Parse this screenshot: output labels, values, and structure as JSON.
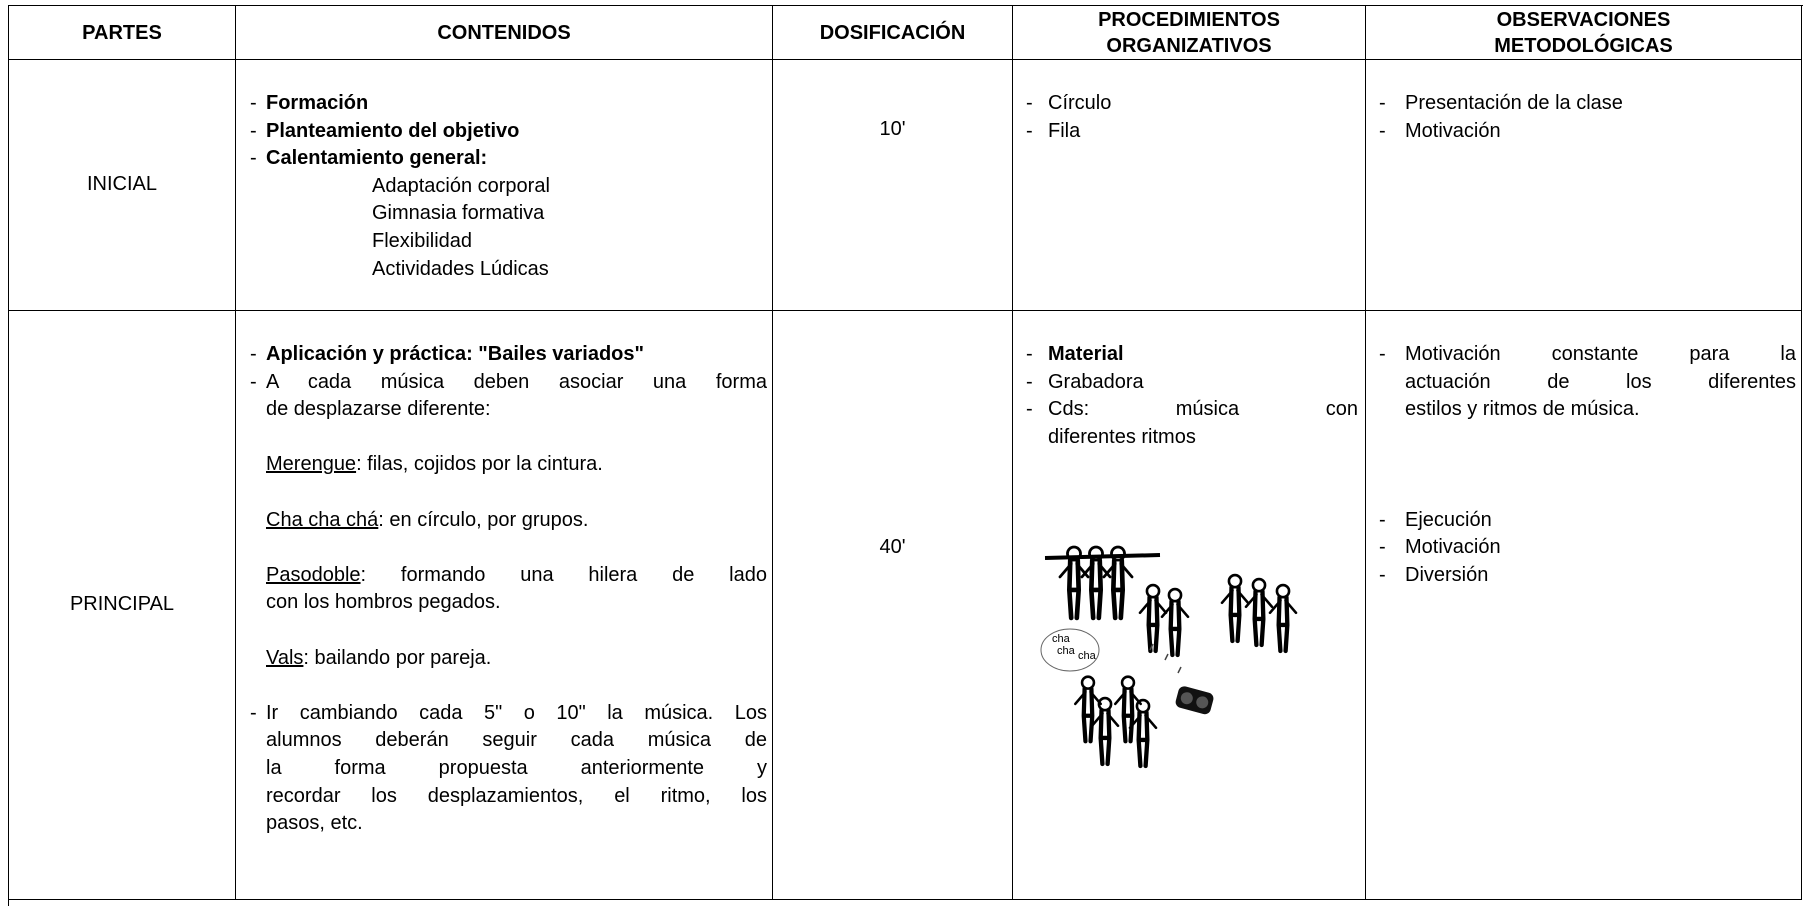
{
  "header": {
    "cells": [
      [
        "PARTES"
      ],
      [
        "CONTENIDOS"
      ],
      [
        "DOSIFICACIÓN"
      ],
      [
        "PROCEDIMIENTOS",
        "ORGANIZATIVOS"
      ],
      [
        "OBSERVACIONES",
        "METODOLÓGICAS"
      ]
    ]
  },
  "rows": [
    {
      "parte": "INICIAL",
      "contenidos": [
        {
          "dash": "-",
          "lines": [
            [
              {
                "text": "Formación",
                "bold": true
              }
            ]
          ]
        },
        {
          "dash": "-",
          "lines": [
            [
              {
                "text": "Planteamiento del objetivo",
                "bold": true
              }
            ]
          ]
        },
        {
          "dash": "-",
          "lines": [
            [
              {
                "text": "Calentamiento general:",
                "bold": true
              }
            ]
          ]
        },
        {
          "lines": [
            [
              {
                "text": "Adaptación corporal"
              }
            ]
          ]
        },
        {
          "lines": [
            [
              {
                "text": "Gimnasia formativa"
              }
            ]
          ]
        },
        {
          "lines": [
            [
              {
                "text": "Flexibilidad"
              }
            ]
          ]
        },
        {
          "lines": [
            [
              {
                "text": "Actividades Lúdicas"
              }
            ]
          ]
        }
      ],
      "dosificacion": "10'",
      "procedimientos": [
        {
          "dash": "-",
          "lines": [
            [
              {
                "text": "Círculo"
              }
            ]
          ]
        },
        {
          "dash": "-",
          "lines": [
            [
              {
                "text": "Fila"
              }
            ]
          ]
        }
      ],
      "observaciones": [
        {
          "dash": "-",
          "lines": [
            [
              {
                "text": "Presentación de la clase"
              }
            ]
          ]
        },
        {
          "dash": "-",
          "lines": [
            [
              {
                "text": "Motivación"
              }
            ]
          ]
        }
      ]
    },
    {
      "parte": "PRINCIPAL",
      "contenidos": [
        {
          "dash": "-",
          "lines": [
            [
              {
                "text": "Aplicación y práctica: \"Bailes variados\"",
                "bold": true
              }
            ]
          ]
        },
        {
          "dash": "-",
          "lines": [
            [
              {
                "text": "A cada música deben asociar una forma"
              }
            ],
            [
              {
                "text": "de desplazarse diferente:"
              }
            ]
          ]
        },
        {
          "lines": [
            [
              {
                "text": "Merengue",
                "underline": true
              },
              {
                "text": ": filas, cojidos por la cintura."
              }
            ]
          ]
        },
        {
          "lines": [
            [
              {
                "text": "Cha cha chá",
                "underline": true
              },
              {
                "text": ": en círculo, por grupos."
              }
            ]
          ]
        },
        {
          "lines": [
            [
              {
                "text": "Pasodoble",
                "underline": true
              },
              {
                "text": ": formando una hilera de lado"
              }
            ],
            [
              {
                "text": "con los hombros pegados."
              }
            ]
          ]
        },
        {
          "lines": [
            [
              {
                "text": "Vals",
                "underline": true
              },
              {
                "text": ": bailando por pareja."
              }
            ]
          ]
        },
        {
          "dash": "-",
          "lines": [
            [
              {
                "text": "Ir cambiando cada 5\" o 10\" la música. Los"
              }
            ],
            [
              {
                "text": "alumnos deberán seguir cada música de"
              }
            ],
            [
              {
                "text": "la forma propuesta anteriormente y"
              }
            ],
            [
              {
                "text": "recordar los desplazamientos, el ritmo, los"
              }
            ],
            [
              {
                "text": "pasos, etc."
              }
            ]
          ]
        }
      ],
      "dosificacion": "40'",
      "procedimientos": [
        {
          "dash": "-",
          "lines": [
            [
              {
                "text": "Material",
                "bold": true
              }
            ]
          ]
        },
        {
          "dash": "-",
          "lines": [
            [
              {
                "text": "Grabadora"
              }
            ]
          ]
        },
        {
          "dash": "-",
          "lines": [
            [
              {
                "text": "Cds: música con"
              }
            ],
            [
              {
                "text": "diferentes ritmos"
              }
            ]
          ]
        }
      ],
      "observaciones": [
        {
          "dash": "-",
          "lines": [
            [
              {
                "text": "Motivación constante para la"
              }
            ],
            [
              {
                "text": "actuación de los diferentes"
              }
            ],
            [
              {
                "text": "estilos y ritmos de música."
              }
            ]
          ]
        },
        {
          "dash": "-",
          "lines": [
            [
              {
                "text": "Ejecución"
              }
            ]
          ]
        },
        {
          "dash": "-",
          "lines": [
            [
              {
                "text": "Motivación"
              }
            ]
          ]
        },
        {
          "dash": "-",
          "lines": [
            [
              {
                "text": "Diversión"
              }
            ]
          ]
        }
      ]
    }
  ],
  "illustration": {
    "bubble": [
      "cha",
      "cha",
      "cha"
    ]
  }
}
